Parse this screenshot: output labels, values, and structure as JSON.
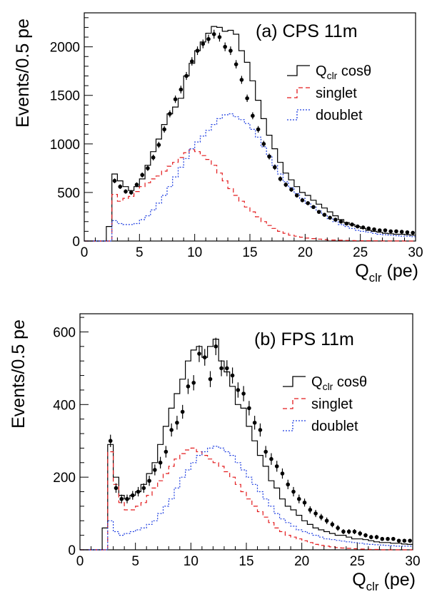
{
  "chart_data": [
    {
      "type": "histogram",
      "panel_label": "(a)  CPS 11m",
      "ylabel": "Events/0.5 pe",
      "xlabel_main": "Q",
      "xlabel_sub": "clr",
      "xlabel_unit": " (pe)",
      "xlim": [
        0,
        30
      ],
      "ylim": [
        0,
        2350
      ],
      "x_ticks": [
        0,
        5,
        10,
        15,
        20,
        25,
        30
      ],
      "y_ticks": [
        0,
        500,
        1000,
        1500,
        2000
      ],
      "bin_width": 0.5,
      "bin_start": 0,
      "legend": [
        {
          "main": "Q",
          "sub": "clr",
          "suffix": " cosθ",
          "style": "solid",
          "color": "#000000"
        },
        {
          "main": "singlet",
          "sub": "",
          "suffix": "",
          "style": "dashed",
          "color": "#e31a1c"
        },
        {
          "main": "doublet",
          "sub": "",
          "suffix": "",
          "style": "dotted",
          "color": "#1f3fe0"
        }
      ],
      "series": [
        {
          "name": "Q_clr cosθ",
          "style": "solid",
          "color": "#000000",
          "values": [
            0,
            0,
            0,
            0,
            150,
            690,
            620,
            560,
            520,
            560,
            640,
            780,
            920,
            1050,
            1200,
            1310,
            1380,
            1470,
            1700,
            1830,
            1960,
            2050,
            2140,
            2210,
            2200,
            2160,
            2170,
            2130,
            1960,
            1840,
            1650,
            1450,
            1260,
            1090,
            950,
            810,
            700,
            630,
            560,
            500,
            470,
            420,
            380,
            340,
            300,
            260,
            220,
            190,
            170,
            150,
            130,
            110,
            100,
            90,
            80,
            75,
            70,
            70,
            65,
            60
          ]
        },
        {
          "name": "singlet",
          "style": "dashed",
          "color": "#e31a1c",
          "values": [
            0,
            0,
            0,
            0,
            0,
            480,
            410,
            440,
            460,
            510,
            560,
            600,
            640,
            670,
            720,
            770,
            810,
            860,
            910,
            940,
            920,
            880,
            840,
            780,
            700,
            620,
            540,
            470,
            410,
            350,
            300,
            250,
            200,
            160,
            130,
            100,
            80,
            60,
            50,
            40,
            30,
            25,
            20,
            15,
            10,
            10,
            8,
            6,
            5,
            4,
            3,
            3,
            2,
            2,
            1,
            1,
            1,
            1,
            0,
            0
          ]
        },
        {
          "name": "doublet",
          "style": "dotted",
          "color": "#1f3fe0",
          "values": [
            0,
            0,
            0,
            0,
            0,
            210,
            180,
            170,
            170,
            180,
            220,
            260,
            320,
            390,
            470,
            560,
            660,
            760,
            850,
            950,
            1020,
            1080,
            1140,
            1200,
            1260,
            1300,
            1310,
            1280,
            1250,
            1210,
            1150,
            1070,
            970,
            880,
            780,
            690,
            610,
            550,
            490,
            440,
            390,
            350,
            310,
            270,
            230,
            200,
            170,
            150,
            130,
            110,
            100,
            90,
            80,
            70,
            65,
            60,
            55,
            50,
            50,
            45
          ]
        }
      ],
      "data_points": {
        "x": [
          2.75,
          3.25,
          3.75,
          4.25,
          4.75,
          5.25,
          5.75,
          6.25,
          6.75,
          7.25,
          7.75,
          8.25,
          8.75,
          9.25,
          9.75,
          10.25,
          10.75,
          11.25,
          11.75,
          12.25,
          12.75,
          13.25,
          13.75,
          14.25,
          14.75,
          15.25,
          15.75,
          16.25,
          16.75,
          17.25,
          17.75,
          18.25,
          18.75,
          19.25,
          19.75,
          20.25,
          20.75,
          21.25,
          21.75,
          22.25,
          22.75,
          23.25,
          23.75,
          24.25,
          24.75,
          25.25,
          25.75,
          26.25,
          26.75,
          27.25,
          27.75,
          28.25,
          28.75,
          29.25,
          29.75
        ],
        "y": [
          620,
          560,
          510,
          500,
          580,
          680,
          750,
          860,
          990,
          1150,
          1310,
          1460,
          1560,
          1700,
          1850,
          1960,
          2030,
          2080,
          2130,
          2100,
          2000,
          1960,
          1820,
          1660,
          1470,
          1290,
          1150,
          1000,
          870,
          760,
          640,
          580,
          530,
          470,
          420,
          390,
          350,
          300,
          270,
          240,
          220,
          200,
          180,
          170,
          150,
          140,
          130,
          120,
          110,
          110,
          100,
          100,
          95,
          90,
          85
        ],
        "err": [
          25,
          24,
          23,
          23,
          24,
          26,
          28,
          30,
          32,
          34,
          36,
          38,
          40,
          41,
          43,
          44,
          45,
          45,
          46,
          46,
          45,
          44,
          43,
          41,
          38,
          36,
          34,
          32,
          30,
          28,
          26,
          24,
          23,
          22,
          21,
          20,
          19,
          17,
          16,
          16,
          15,
          14,
          13,
          13,
          12,
          12,
          11,
          11,
          11,
          10,
          10,
          10,
          10,
          9,
          9
        ]
      }
    },
    {
      "type": "histogram",
      "panel_label": "(b)  FPS 11m",
      "ylabel": "Events/0.5 pe",
      "xlabel_main": "Q",
      "xlabel_sub": "clr",
      "xlabel_unit": " (pe)",
      "xlim": [
        0,
        30
      ],
      "ylim": [
        0,
        650
      ],
      "x_ticks": [
        0,
        5,
        10,
        15,
        20,
        25,
        30
      ],
      "y_ticks": [
        0,
        200,
        400,
        600
      ],
      "bin_width": 0.5,
      "bin_start": 0,
      "legend": [
        {
          "main": "Q",
          "sub": "clr",
          "suffix": " cosθ",
          "style": "solid",
          "color": "#000000"
        },
        {
          "main": "singlet",
          "sub": "",
          "suffix": "",
          "style": "dashed",
          "color": "#e31a1c"
        },
        {
          "main": "doublet",
          "sub": "",
          "suffix": "",
          "style": "dotted",
          "color": "#1f3fe0"
        }
      ],
      "series": [
        {
          "name": "Q_clr cosθ",
          "style": "solid",
          "color": "#000000",
          "values": [
            0,
            0,
            0,
            0,
            60,
            290,
            200,
            150,
            140,
            150,
            160,
            180,
            210,
            240,
            290,
            340,
            390,
            430,
            470,
            520,
            550,
            560,
            530,
            560,
            580,
            520,
            490,
            450,
            400,
            390,
            340,
            300,
            260,
            230,
            190,
            170,
            140,
            120,
            110,
            95,
            80,
            70,
            60,
            55,
            50,
            45,
            40,
            40,
            35,
            30,
            30,
            28,
            25,
            22,
            20,
            20,
            18,
            18,
            16,
            15
          ]
        },
        {
          "name": "singlet",
          "style": "dashed",
          "color": "#e31a1c",
          "values": [
            0,
            0,
            0,
            0,
            0,
            270,
            180,
            130,
            110,
            110,
            120,
            130,
            150,
            170,
            190,
            210,
            230,
            250,
            265,
            275,
            280,
            270,
            260,
            250,
            240,
            230,
            215,
            200,
            180,
            160,
            140,
            120,
            105,
            90,
            75,
            60,
            50,
            40,
            35,
            30,
            25,
            20,
            15,
            12,
            10,
            8,
            6,
            5,
            4,
            3,
            2,
            2,
            1,
            1,
            0,
            0,
            0,
            0,
            0,
            0
          ]
        },
        {
          "name": "doublet",
          "style": "dotted",
          "color": "#1f3fe0",
          "values": [
            0,
            0,
            0,
            0,
            0,
            80,
            50,
            40,
            45,
            50,
            55,
            60,
            70,
            80,
            100,
            120,
            140,
            170,
            200,
            220,
            240,
            260,
            270,
            280,
            285,
            280,
            270,
            260,
            240,
            220,
            200,
            180,
            160,
            140,
            120,
            100,
            85,
            75,
            65,
            55,
            50,
            45,
            40,
            35,
            30,
            28,
            26,
            24,
            22,
            20,
            18,
            16,
            15,
            14,
            13,
            12,
            11,
            10,
            10,
            10
          ]
        }
      ],
      "data_points": {
        "x": [
          2.75,
          3.25,
          3.75,
          4.25,
          4.75,
          5.25,
          5.75,
          6.25,
          6.75,
          7.25,
          7.75,
          8.25,
          8.75,
          9.25,
          9.75,
          10.25,
          10.75,
          11.25,
          11.75,
          12.25,
          12.75,
          13.25,
          13.75,
          14.25,
          14.75,
          15.25,
          15.75,
          16.25,
          16.75,
          17.25,
          17.75,
          18.25,
          18.75,
          19.25,
          19.75,
          20.25,
          20.75,
          21.25,
          21.75,
          22.25,
          22.75,
          23.25,
          23.75,
          24.25,
          24.75,
          25.25,
          25.75,
          26.25,
          26.75,
          27.25,
          27.75,
          28.25,
          28.75,
          29.25,
          29.75
        ],
        "y": [
          300,
          170,
          140,
          140,
          150,
          160,
          170,
          190,
          220,
          240,
          270,
          330,
          350,
          380,
          450,
          460,
          540,
          530,
          470,
          560,
          500,
          500,
          480,
          440,
          430,
          390,
          350,
          330,
          270,
          250,
          230,
          210,
          180,
          160,
          140,
          130,
          110,
          100,
          90,
          80,
          70,
          60,
          50,
          50,
          50,
          45,
          40,
          35,
          35,
          30,
          30,
          30,
          25,
          25,
          25
        ],
        "err": [
          17,
          13,
          12,
          12,
          12,
          13,
          13,
          14,
          15,
          16,
          16,
          18,
          19,
          19,
          21,
          21,
          23,
          23,
          22,
          24,
          22,
          22,
          22,
          21,
          21,
          20,
          19,
          18,
          16,
          16,
          15,
          14,
          13,
          13,
          12,
          11,
          10,
          10,
          9,
          9,
          8,
          8,
          7,
          7,
          7,
          7,
          6,
          6,
          6,
          5,
          5,
          5,
          5,
          5,
          5
        ]
      }
    }
  ]
}
